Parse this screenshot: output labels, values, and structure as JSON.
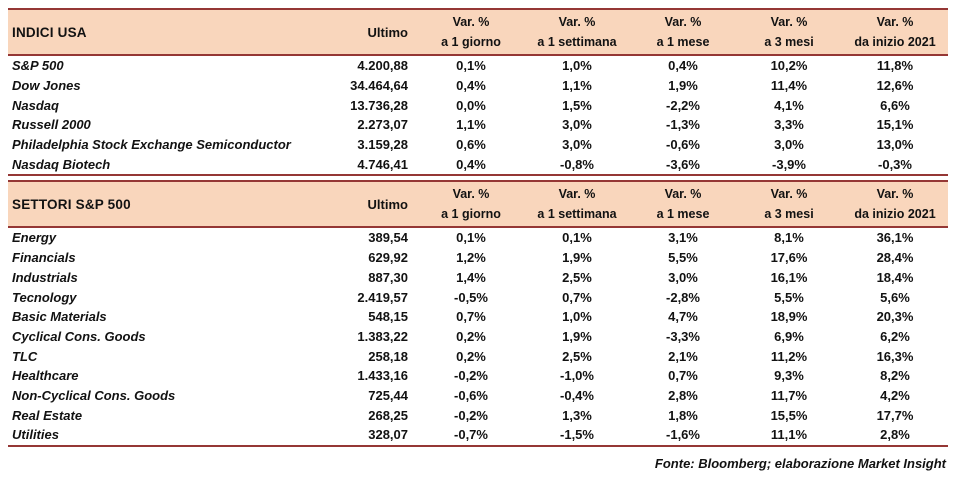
{
  "colors": {
    "page_bg": "#FFFFFF",
    "header_bg": "#F9D6BC",
    "border": "#953735",
    "text": "#121212"
  },
  "chart_data": [
    {
      "type": "table",
      "title": "INDICI USA",
      "columns": [
        {
          "label": "Ultimo"
        },
        {
          "label": "Var. %",
          "sub": "a 1 giorno"
        },
        {
          "label": "Var. %",
          "sub": "a 1 settimana"
        },
        {
          "label": "Var. %",
          "sub": "a 1 mese"
        },
        {
          "label": "Var. %",
          "sub": "a 3 mesi"
        },
        {
          "label": "Var. %",
          "sub": "da inizio 2021"
        }
      ],
      "rows": [
        [
          "S&P 500",
          "4.200,88",
          "0,1%",
          "1,0%",
          "0,4%",
          "10,2%",
          "11,8%"
        ],
        [
          "Dow Jones",
          "34.464,64",
          "0,4%",
          "1,1%",
          "1,9%",
          "11,4%",
          "12,6%"
        ],
        [
          "Nasdaq",
          "13.736,28",
          "0,0%",
          "1,5%",
          "-2,2%",
          "4,1%",
          "6,6%"
        ],
        [
          "Russell 2000",
          "2.273,07",
          "1,1%",
          "3,0%",
          "-1,3%",
          "3,3%",
          "15,1%"
        ],
        [
          "Philadelphia Stock Exchange Semiconductor",
          "3.159,28",
          "0,6%",
          "3,0%",
          "-0,6%",
          "3,0%",
          "13,0%"
        ],
        [
          "Nasdaq Biotech",
          "4.746,41",
          "0,4%",
          "-0,8%",
          "-3,6%",
          "-3,9%",
          "-0,3%"
        ]
      ]
    },
    {
      "type": "table",
      "title": "SETTORI S&P 500",
      "columns": [
        {
          "label": "Ultimo"
        },
        {
          "label": "Var. %",
          "sub": "a 1 giorno"
        },
        {
          "label": "Var. %",
          "sub": "a 1 settimana"
        },
        {
          "label": "Var. %",
          "sub": "a 1 mese"
        },
        {
          "label": "Var. %",
          "sub": "a 3 mesi"
        },
        {
          "label": "Var. %",
          "sub": "da inizio 2021"
        }
      ],
      "rows": [
        [
          "Energy",
          "389,54",
          "0,1%",
          "0,1%",
          "3,1%",
          "8,1%",
          "36,1%"
        ],
        [
          "Financials",
          "629,92",
          "1,2%",
          "1,9%",
          "5,5%",
          "17,6%",
          "28,4%"
        ],
        [
          "Industrials",
          "887,30",
          "1,4%",
          "2,5%",
          "3,0%",
          "16,1%",
          "18,4%"
        ],
        [
          "Tecnology",
          "2.419,57",
          "-0,5%",
          "0,7%",
          "-2,8%",
          "5,5%",
          "5,6%"
        ],
        [
          "Basic Materials",
          "548,15",
          "0,7%",
          "1,0%",
          "4,7%",
          "18,9%",
          "20,3%"
        ],
        [
          "Cyclical Cons. Goods",
          "1.383,22",
          "0,2%",
          "1,9%",
          "-3,3%",
          "6,9%",
          "6,2%"
        ],
        [
          "TLC",
          "258,18",
          "0,2%",
          "2,5%",
          "2,1%",
          "11,2%",
          "16,3%"
        ],
        [
          "Healthcare",
          "1.433,16",
          "-0,2%",
          "-1,0%",
          "0,7%",
          "9,3%",
          "8,2%"
        ],
        [
          "Non-Cyclical Cons. Goods",
          "725,44",
          "-0,6%",
          "-0,4%",
          "2,8%",
          "11,7%",
          "4,2%"
        ],
        [
          "Real Estate",
          "268,25",
          "-0,2%",
          "1,3%",
          "1,8%",
          "15,5%",
          "17,7%"
        ],
        [
          "Utilities",
          "328,07",
          "-0,7%",
          "-1,5%",
          "-1,6%",
          "11,1%",
          "2,8%"
        ]
      ]
    }
  ],
  "footer": {
    "text": "Fonte: Bloomberg; elaborazione Market Insight"
  }
}
